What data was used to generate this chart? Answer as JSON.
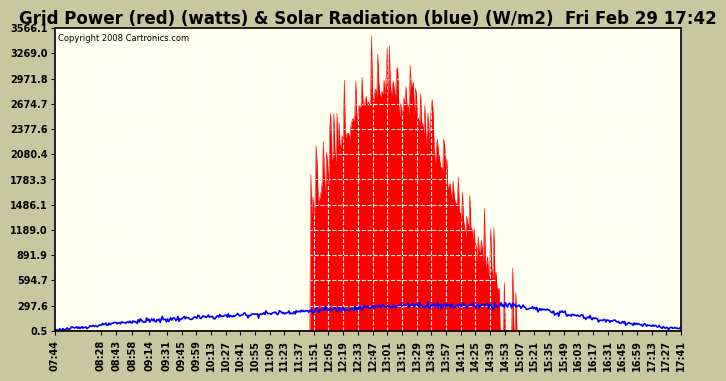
{
  "title": "Grid Power (red) (watts) & Solar Radiation (blue) (W/m2)  Fri Feb 29 17:42",
  "copyright": "Copyright 2008 Cartronics.com",
  "yticks": [
    0.5,
    297.6,
    594.7,
    891.9,
    1189.0,
    1486.1,
    1783.3,
    2080.4,
    2377.6,
    2674.7,
    2971.8,
    3269.0,
    3566.1
  ],
  "ylim": [
    0.5,
    3566.1
  ],
  "plot_bg_color": "#fffff0",
  "fig_bg_color": "#c8c8a0",
  "red_color": "#ff0000",
  "blue_color": "#0000ff",
  "grid_color": "#ffffff",
  "title_fontsize": 12,
  "tick_fontsize": 7,
  "xtick_labels": [
    "07:44",
    "08:28",
    "08:43",
    "08:58",
    "09:14",
    "09:31",
    "09:45",
    "09:59",
    "10:13",
    "10:27",
    "10:41",
    "10:55",
    "11:09",
    "11:23",
    "11:37",
    "11:51",
    "12:05",
    "12:19",
    "12:33",
    "12:47",
    "13:01",
    "13:15",
    "13:29",
    "13:43",
    "13:57",
    "14:11",
    "14:25",
    "14:39",
    "14:53",
    "15:07",
    "15:21",
    "15:35",
    "15:49",
    "16:03",
    "16:17",
    "16:31",
    "16:45",
    "16:59",
    "17:13",
    "17:27",
    "17:41"
  ]
}
